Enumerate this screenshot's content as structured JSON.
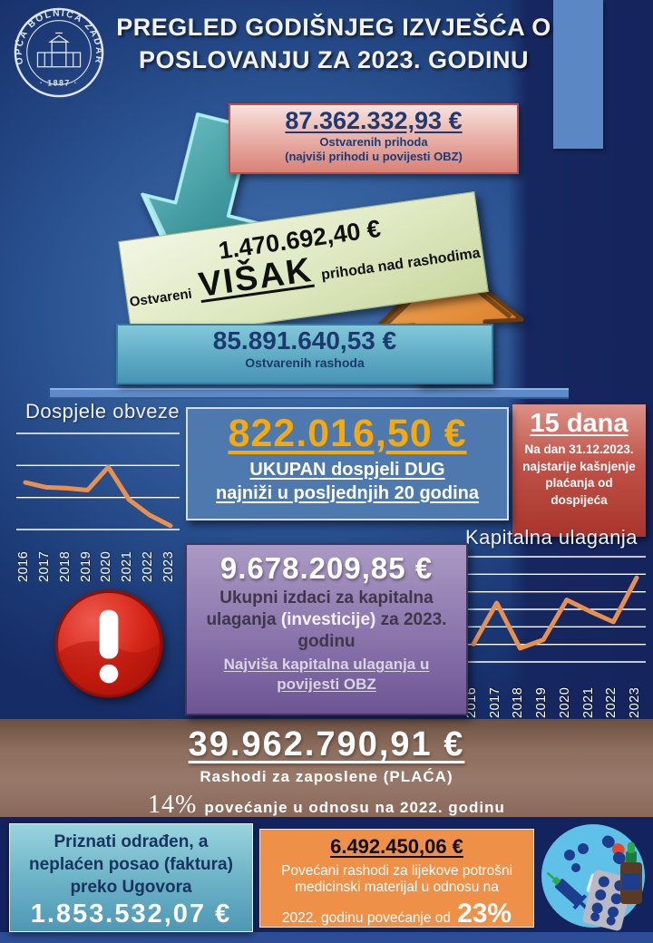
{
  "header": {
    "title_line1": "PREGLED GODIŠNJEG IZVJEŠĆA O",
    "title_line2": "POSLOVANJU ZA 2023. GODINU",
    "logo": {
      "arc_text": "OPĆA BOLNICA ZADAR",
      "year": "· 1887 ·"
    }
  },
  "income_box": {
    "amount": "87.362.332,93 €",
    "line1": "Ostvarenih prihoda",
    "line2": "(najviši prihodi u povijesti OBZ)"
  },
  "surplus_banner": {
    "amount": "1.470.692,40 €",
    "prefix": "Ostvareni",
    "highlight": "VIŠAK",
    "suffix": "prihoda nad rashodima"
  },
  "expense_box": {
    "amount": "85.891.640,53 €",
    "label": "Ostvarenih rashoda"
  },
  "due_section": {
    "title": "Dospjele obveze",
    "amount": "822.016,50 €",
    "line1": "UKUPAN dospjeli DUG",
    "line2": "najniži u posljednjih 20 godina"
  },
  "delay_box": {
    "big": "15 dana",
    "body": "Na dan 31.12.2023. najstarije kašnjenje plaćanja od dospijeća"
  },
  "capital_section": {
    "title": "Kapitalna ulaganja",
    "amount": "9.678.209,85 €",
    "desc_part1": "Ukupni izdaci za kapitalna ulaganja ",
    "desc_part2": "(investicije)",
    "desc_part3": " za 2023. godinu",
    "note": "Najviša kapitalna ulaganja u povijesti OBZ"
  },
  "salary_banner": {
    "amount": "39.962.790,91 €",
    "label": "Rashodi za zaposlene (PLAĆA)",
    "pct": "14%",
    "pct_rest": "povećanje u odnosu na 2022. godinu"
  },
  "unpaid_box": {
    "label": "Priznati odrađen, a neplaćen posao (faktura) preko Ugovora",
    "amount": "1.853.532,07 €"
  },
  "medicine_box": {
    "amount": "6.492.450,06 €",
    "body": "Povećani rashodi za lijekove potrošni medicinski materijal u odnosu na",
    "tail": "2022. godinu povećanje od",
    "pct": "23%"
  },
  "icons": {
    "warning": "exclamation-circle",
    "medical": "pills-syringe-bottle",
    "arrow_down": "teal-3d-arrow-down",
    "arrow_up": "orange-3d-arrow-up"
  },
  "colors": {
    "background_navy": "#14245e",
    "background_glow": "#4474b1",
    "stripe_blue": "#5b88c4",
    "income_pink": "#d98176",
    "surplus_green": "#dde8bf",
    "expense_teal": "#55a3bf",
    "due_blue": "#4d79ae",
    "due_gold": "#f6a90a",
    "delay_red": "#a8352b",
    "capital_purple": "#8a74ab",
    "salary_brown": "#8d6d5c",
    "medicine_orange": "#ef9049",
    "chart_line_orange": "#e8914e"
  },
  "chart_data": [
    {
      "type": "line",
      "title": "Dospjele obveze",
      "categories": [
        "2016",
        "2017",
        "2018",
        "2019",
        "2020",
        "2021",
        "2022",
        "2023"
      ],
      "values": [
        0.49,
        0.44,
        0.43,
        0.41,
        0.65,
        0.31,
        0.15,
        0.04
      ],
      "ylim": [
        0,
        1
      ],
      "gridlines": 4,
      "line_color": "#e8914e",
      "legend": "none",
      "xlabel": "",
      "ylabel": ""
    },
    {
      "type": "line",
      "title": "Kapitalna ulaganja",
      "categories": [
        "2016",
        "2017",
        "2018",
        "2019",
        "2020",
        "2021",
        "2022",
        "2023"
      ],
      "values": [
        0.17,
        0.56,
        0.13,
        0.21,
        0.59,
        0.48,
        0.38,
        0.8
      ],
      "ylim": [
        0,
        1
      ],
      "gridlines": 7,
      "line_color": "#e8914e",
      "legend": "none",
      "xlabel": "",
      "ylabel": ""
    }
  ]
}
